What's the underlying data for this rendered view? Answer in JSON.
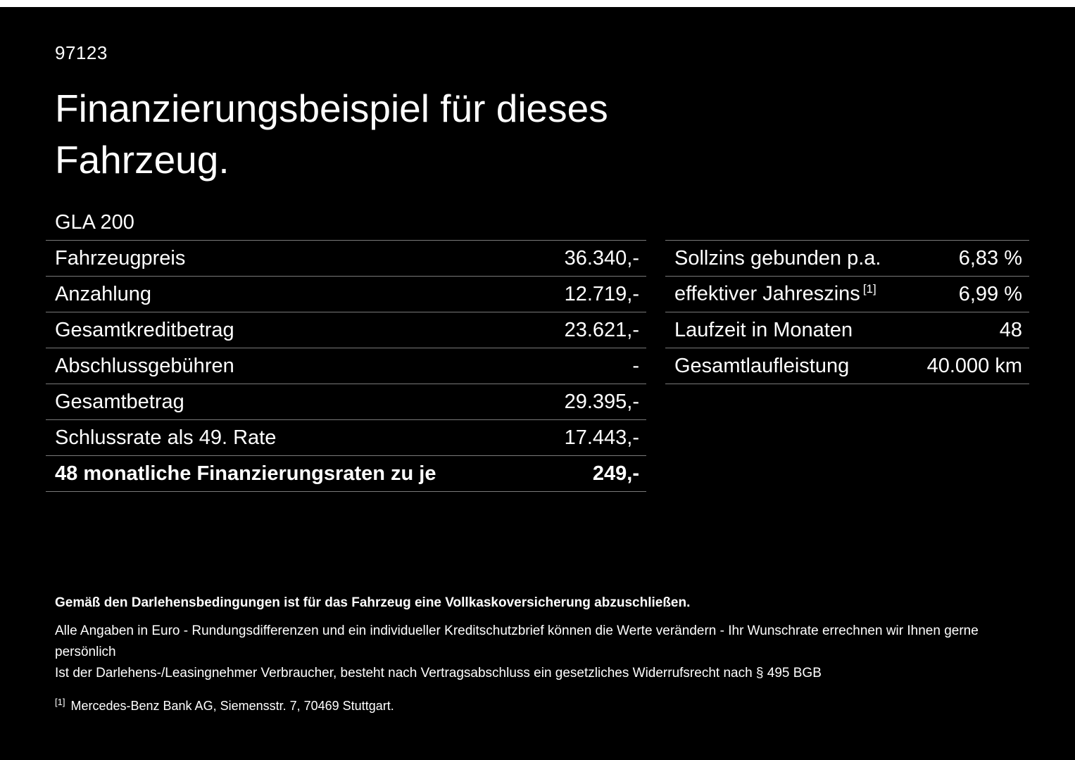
{
  "meta": {
    "code": "97123",
    "title_line1": "Finanzierungsbeispiel für dieses",
    "title_line2": "Fahrzeug.",
    "model": "GLA 200"
  },
  "left_table": {
    "rows": [
      {
        "label": "Fahrzeugpreis",
        "value": "36.340,-"
      },
      {
        "label": "Anzahlung",
        "value": "12.719,-"
      },
      {
        "label": "Gesamtkreditbetrag",
        "value": "23.621,-"
      },
      {
        "label": "Abschlussgebühren",
        "value": "-"
      },
      {
        "label": "Gesamtbetrag",
        "value": "29.395,-"
      },
      {
        "label": "Schlussrate als 49. Rate",
        "value": "17.443,-"
      },
      {
        "label": "48 monatliche Finanzierungsraten zu je",
        "value": "249,-"
      }
    ]
  },
  "right_table": {
    "rows": [
      {
        "label": "Sollzins gebunden p.a.",
        "marker": "",
        "value": "6,83 %"
      },
      {
        "label": "effektiver Jahreszins",
        "marker": "[1]",
        "value": "6,99 %"
      },
      {
        "label": "Laufzeit in Monaten",
        "marker": "",
        "value": "48"
      },
      {
        "label": "Gesamtlaufleistung",
        "marker": "",
        "value": "40.000 km"
      }
    ]
  },
  "footer": {
    "bold_note": "Gemäß den Darlehensbedingungen ist für das Fahrzeug eine Vollkaskoversicherung abzuschließen.",
    "note2": "Alle Angaben in Euro - Rundungsdifferenzen und ein individueller Kreditschutzbrief können die Werte verändern - Ihr Wunschrate errechnen wir Ihnen gerne persönlich",
    "note3": "Ist der Darlehens-/Leasingnehmer Verbraucher, besteht nach Vertragsabschluss ein gesetzliches Widerrufsrecht nach § 495 BGB",
    "footnote_marker": "[1]",
    "footnote_text": "Mercedes-Benz Bank AG, Siemensstr. 7, 70469 Stuttgart."
  },
  "colors": {
    "background": "#000000",
    "text": "#ffffff",
    "divider": "#7a7a7a"
  }
}
